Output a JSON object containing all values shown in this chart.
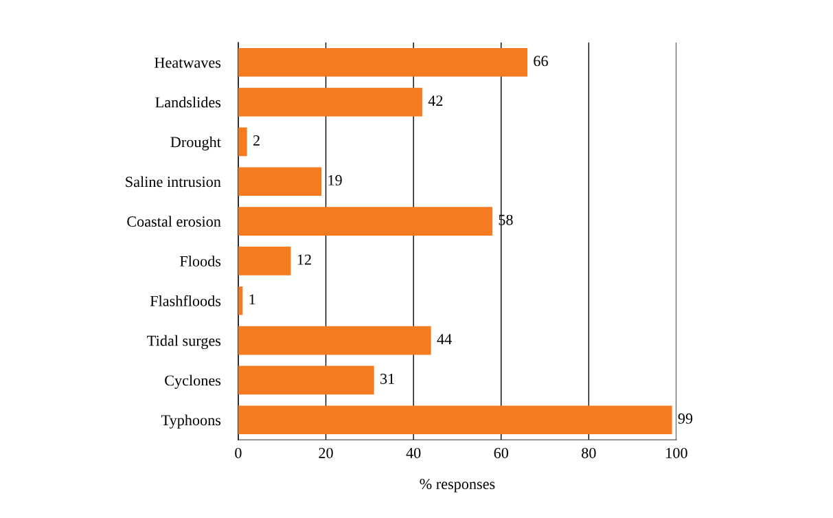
{
  "chart_data": {
    "type": "bar",
    "orientation": "horizontal",
    "xlabel": "% responses",
    "categories": [
      "Heatwaves",
      "Landslides",
      "Drought",
      "Saline intrusion",
      "Coastal erosion",
      "Floods",
      "Flashfloods",
      "Tidal surges",
      "Cyclones",
      "Typhoons"
    ],
    "values": [
      66,
      42,
      2,
      19,
      58,
      12,
      1,
      44,
      31,
      99
    ],
    "color": "#f47b20",
    "xlim": [
      0,
      100
    ],
    "xticks": [
      0,
      20,
      40,
      60,
      80,
      100
    ],
    "grid": "x",
    "data_labels": true,
    "legend": false
  }
}
